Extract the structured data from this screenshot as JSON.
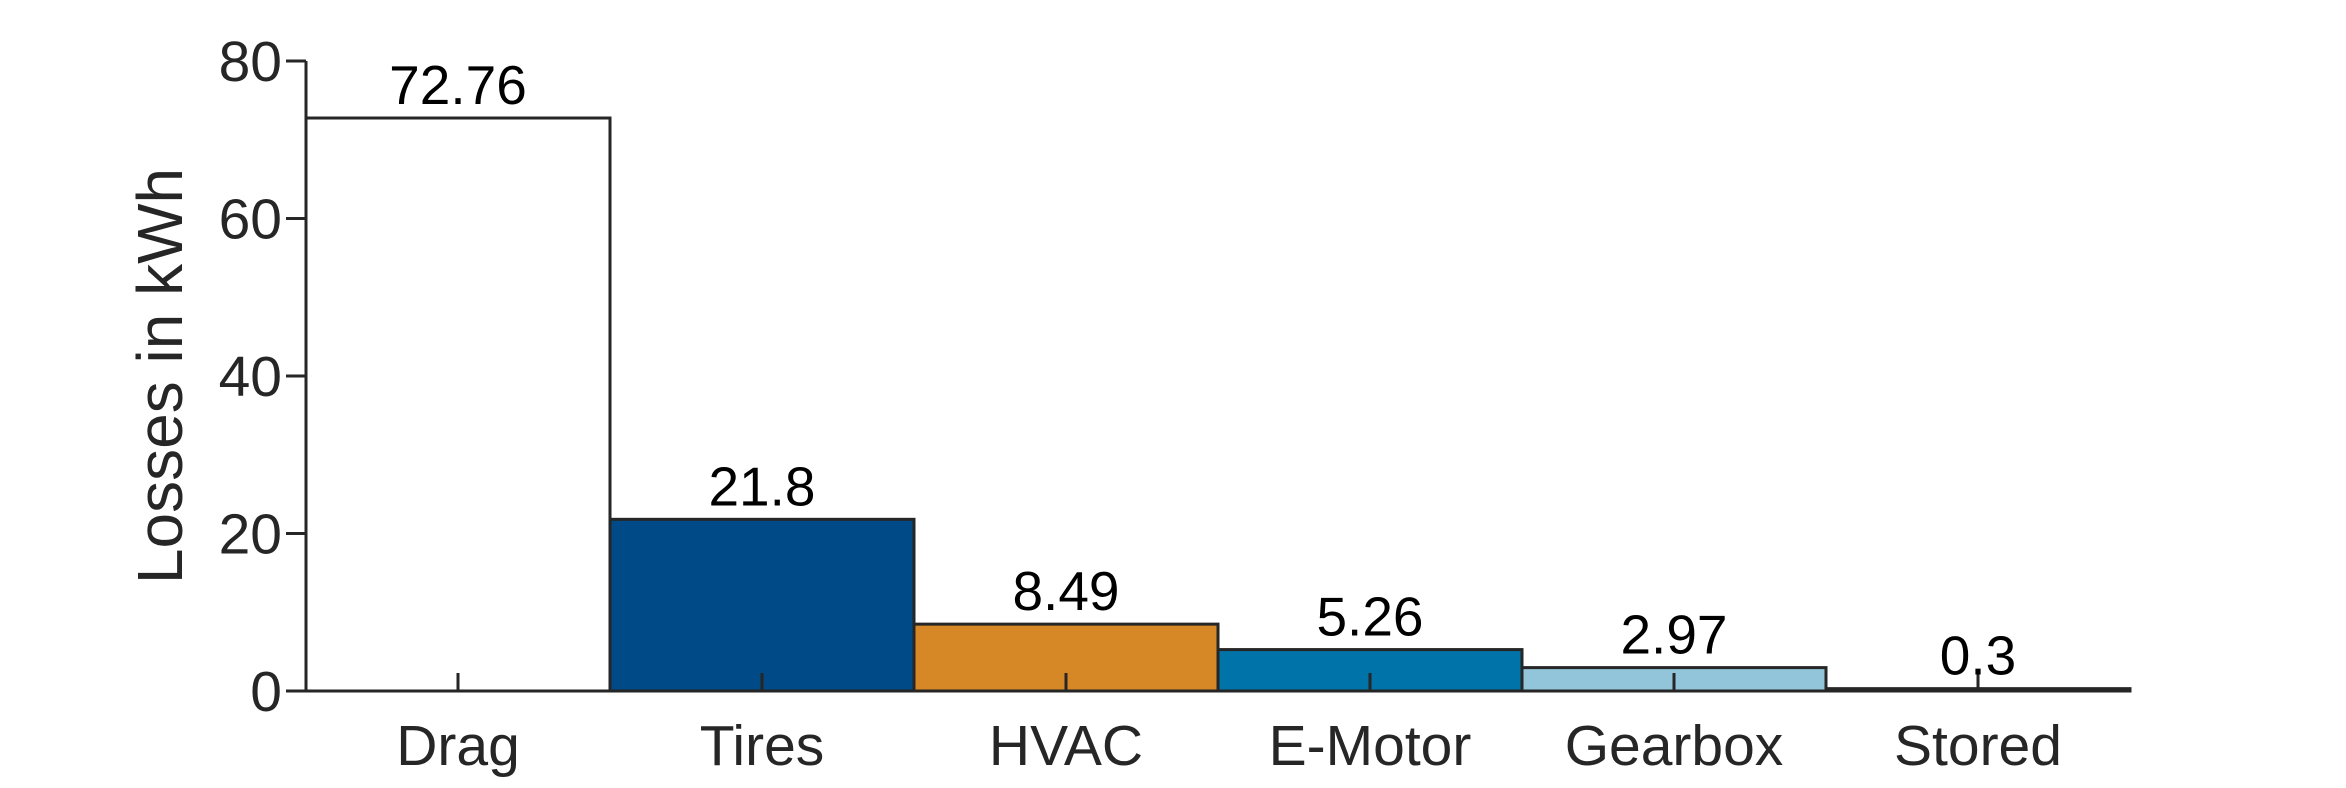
{
  "chart_data": {
    "type": "bar",
    "categories": [
      "Drag",
      "Tires",
      "HVAC",
      "E-Motor",
      "Gearbox",
      "Stored"
    ],
    "values": [
      72.76,
      21.8,
      8.49,
      5.26,
      2.97,
      0.3
    ],
    "value_labels": [
      "72.76",
      "21.8",
      "8.49",
      "5.26",
      "2.97",
      "0.3"
    ],
    "colors": [
      "#ffffff",
      "#004a87",
      "#d78826",
      "#0073a8",
      "#92c4da",
      "#ffffff"
    ],
    "title": "",
    "xlabel": "",
    "ylabel": "Losses in kWh",
    "ylim": [
      0,
      80
    ],
    "yticks": [
      0,
      20,
      40,
      60,
      80
    ],
    "ytick_labels": [
      "0",
      "20",
      "40",
      "60",
      "80"
    ],
    "grid": false,
    "legend": "none"
  }
}
